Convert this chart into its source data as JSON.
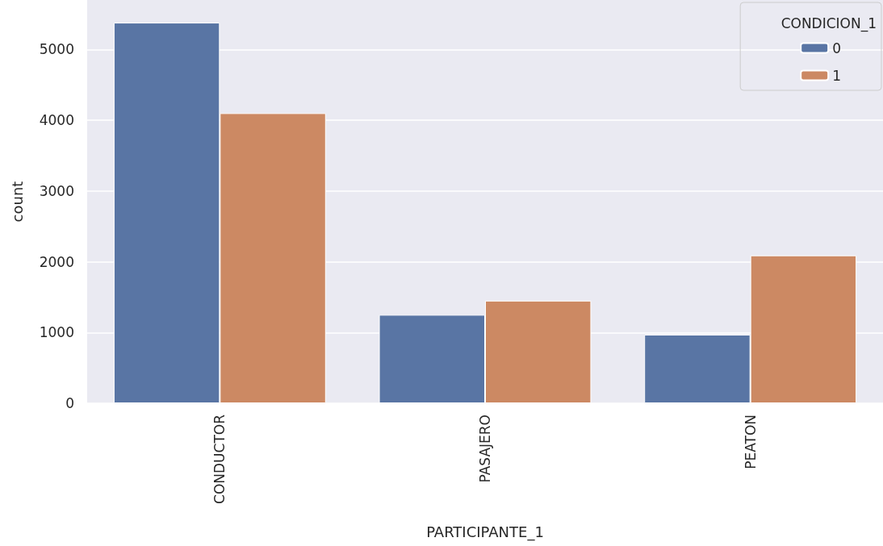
{
  "chart_data": {
    "type": "bar",
    "xlabel": "PARTICIPANTE_1",
    "ylabel": "count",
    "legend_title": "CONDICION_1",
    "categories": [
      "CONDUCTOR",
      "PASAJERO",
      "PEATON"
    ],
    "series": [
      {
        "name": "0",
        "color": "#5975a4",
        "values": [
          5380,
          1250,
          970
        ]
      },
      {
        "name": "1",
        "color": "#cc8963",
        "values": [
          4100,
          1450,
          2090
        ]
      }
    ],
    "ylim": [
      0,
      5700
    ],
    "yticks": [
      0,
      1000,
      2000,
      3000,
      4000,
      5000
    ],
    "grid": "y",
    "legend": "top right"
  }
}
